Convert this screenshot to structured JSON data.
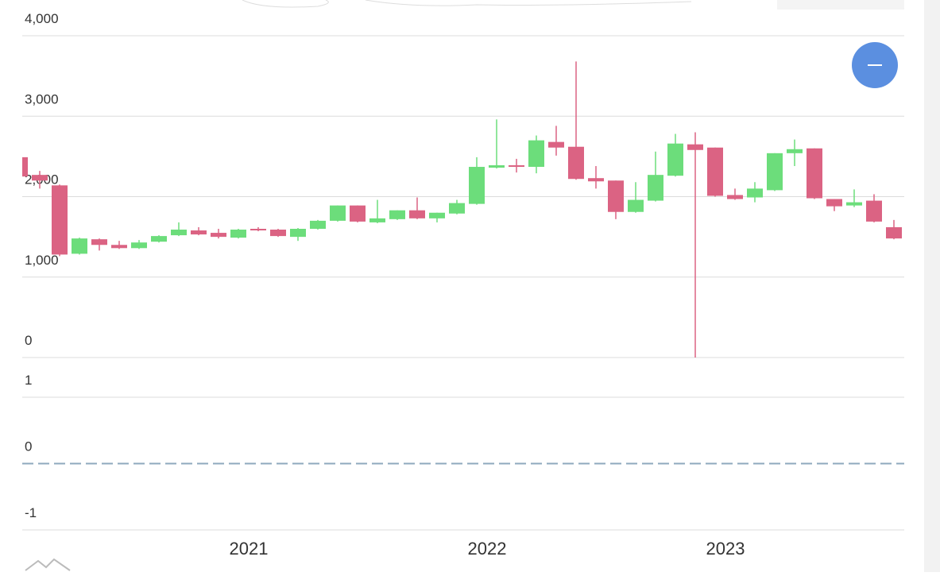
{
  "chart_data": [
    {
      "type": "candlestick",
      "categories": [
        null,
        null,
        null,
        null,
        null,
        null,
        null,
        null,
        null,
        null,
        null,
        null,
        "2021",
        null,
        null,
        null,
        null,
        null,
        null,
        null,
        null,
        null,
        null,
        null,
        "2022",
        null,
        null,
        null,
        null,
        null,
        null,
        null,
        null,
        null,
        null,
        null,
        "2023",
        null,
        null,
        null,
        null,
        null,
        null,
        null,
        null
      ],
      "open": [
        2490,
        2270,
        2140,
        1290,
        1470,
        1400,
        1360,
        1440,
        1520,
        1580,
        1550,
        1490,
        1600,
        1590,
        1500,
        1600,
        1700,
        1890,
        1680,
        1720,
        1830,
        1730,
        1790,
        1910,
        2360,
        2390,
        2370,
        2680,
        2620,
        2230,
        2200,
        1810,
        1950,
        2260,
        2650,
        2610,
        2020,
        1990,
        2080,
        2540,
        2600,
        1970,
        1890,
        1950,
        1620
      ],
      "high": [
        2490,
        2320,
        2150,
        1490,
        1480,
        1450,
        1460,
        1520,
        1680,
        1620,
        1600,
        1600,
        1620,
        1600,
        1610,
        1710,
        1890,
        1890,
        1960,
        1830,
        1990,
        1800,
        1960,
        2490,
        2960,
        2470,
        2760,
        2880,
        3680,
        2380,
        2200,
        2180,
        2560,
        2780,
        2800,
        2610,
        2100,
        2180,
        2540,
        2710,
        2600,
        1970,
        2090,
        2030,
        1710
      ],
      "low": [
        2230,
        2100,
        1260,
        1280,
        1330,
        1350,
        1350,
        1430,
        1510,
        1520,
        1480,
        1480,
        1570,
        1500,
        1450,
        1590,
        1690,
        1680,
        1670,
        1710,
        1720,
        1680,
        1780,
        1900,
        2350,
        2300,
        2290,
        2510,
        2210,
        2100,
        1720,
        1800,
        1940,
        2250,
        0,
        2000,
        1960,
        1930,
        2070,
        2380,
        1970,
        1820,
        1870,
        1680,
        1470
      ],
      "close": [
        2250,
        2200,
        1280,
        1480,
        1400,
        1360,
        1430,
        1510,
        1590,
        1530,
        1500,
        1590,
        1580,
        1510,
        1600,
        1700,
        1890,
        1690,
        1730,
        1830,
        1730,
        1800,
        1920,
        2370,
        2390,
        2370,
        2700,
        2610,
        2220,
        2190,
        1810,
        1960,
        2270,
        2660,
        2580,
        2010,
        1970,
        2100,
        2540,
        2590,
        1980,
        1880,
        1930,
        1690,
        1480
      ],
      "up_color": "#6cdd7b",
      "down_color": "#db6383",
      "ylim": [
        0,
        4000
      ],
      "yticks": [
        0,
        {
          "value": 1000,
          "label": "1,000"
        },
        {
          "value": 2000,
          "label": "2,000"
        },
        {
          "value": 3000,
          "label": "3,000"
        },
        {
          "value": 4000,
          "label": "4,000"
        }
      ],
      "grid": true
    },
    {
      "type": "line",
      "series": [],
      "ylim": [
        -1,
        1
      ],
      "yticks": [
        -1,
        0,
        1
      ],
      "grid": true,
      "zero_line_color": "#8fa9be"
    }
  ]
}
